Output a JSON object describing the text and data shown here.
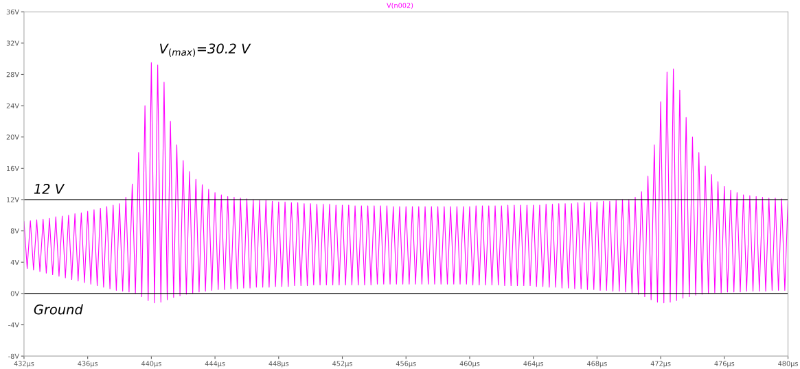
{
  "chart_data": {
    "type": "line",
    "title": "V(n002)",
    "x": [
      432.0,
      432.2,
      432.4,
      432.6,
      432.8,
      433.0,
      433.2,
      433.4,
      433.6,
      433.8,
      434.0,
      434.2,
      434.4,
      434.6,
      434.8,
      435.0,
      435.2,
      435.4,
      435.6,
      435.8,
      436.0,
      436.2,
      436.4,
      436.6,
      436.8,
      437.0,
      437.2,
      437.4,
      437.6,
      437.8,
      438.0,
      438.2,
      438.4,
      438.6,
      438.8,
      439.0,
      439.2,
      439.4,
      439.6,
      439.8,
      440.0,
      440.2,
      440.4,
      440.6,
      440.8,
      441.0,
      441.2,
      441.4,
      441.6,
      441.8,
      442.0,
      442.2,
      442.4,
      442.6,
      442.8,
      443.0,
      443.2,
      443.4,
      443.6,
      443.8,
      444.0,
      444.2,
      444.4,
      444.6,
      444.8,
      445.0,
      445.2,
      445.4,
      445.6,
      445.8,
      446.0,
      446.2,
      446.4,
      446.6,
      446.8,
      447.0,
      447.2,
      447.4,
      447.6,
      447.8,
      448.0,
      448.2,
      448.4,
      448.6,
      448.8,
      449.0,
      449.2,
      449.4,
      449.6,
      449.8,
      450.0,
      450.2,
      450.4,
      450.6,
      450.8,
      451.0,
      451.2,
      451.4,
      451.6,
      451.8,
      452.0,
      452.2,
      452.4,
      452.6,
      452.8,
      453.0,
      453.2,
      453.4,
      453.6,
      453.8,
      454.0,
      454.2,
      454.4,
      454.6,
      454.8,
      455.0,
      455.2,
      455.4,
      455.6,
      455.8,
      456.0,
      456.2,
      456.4,
      456.6,
      456.8,
      457.0,
      457.2,
      457.4,
      457.6,
      457.8,
      458.0,
      458.2,
      458.4,
      458.6,
      458.8,
      459.0,
      459.2,
      459.4,
      459.6,
      459.8,
      460.0,
      460.2,
      460.4,
      460.6,
      460.8,
      461.0,
      461.2,
      461.4,
      461.6,
      461.8,
      462.0,
      462.2,
      462.4,
      462.6,
      462.8,
      463.0,
      463.2,
      463.4,
      463.6,
      463.8,
      464.0,
      464.2,
      464.4,
      464.6,
      464.8,
      465.0,
      465.2,
      465.4,
      465.6,
      465.8,
      466.0,
      466.2,
      466.4,
      466.6,
      466.8,
      467.0,
      467.2,
      467.4,
      467.6,
      467.8,
      468.0,
      468.2,
      468.4,
      468.6,
      468.8,
      469.0,
      469.2,
      469.4,
      469.6,
      469.8,
      470.0,
      470.2,
      470.4,
      470.6,
      470.8,
      471.0,
      471.2,
      471.4,
      471.6,
      471.8,
      472.0,
      472.2,
      472.4,
      472.6,
      472.8,
      473.0,
      473.2,
      473.4,
      473.6,
      473.8,
      474.0,
      474.2,
      474.4,
      474.6,
      474.8,
      475.0,
      475.2,
      475.4,
      475.6,
      475.8,
      476.0,
      476.2,
      476.4,
      476.6,
      476.8,
      477.0,
      477.2,
      477.4,
      477.6,
      477.8,
      478.0,
      478.2,
      478.4,
      478.6,
      478.8,
      479.0,
      479.2,
      479.4,
      479.6,
      479.8,
      480.0
    ],
    "series": [
      {
        "color": "#ff00ff",
        "values": [
          9.2,
          3.2,
          9.3,
          3.0,
          9.4,
          2.8,
          9.5,
          2.6,
          9.6,
          2.4,
          9.8,
          2.2,
          9.9,
          2.0,
          10.0,
          1.8,
          10.2,
          1.6,
          10.3,
          1.4,
          10.5,
          1.2,
          10.7,
          1.0,
          10.9,
          0.8,
          11.1,
          0.6,
          11.3,
          0.4,
          11.5,
          0.3,
          12.3,
          0.2,
          14,
          0.0,
          18,
          -0.4,
          24,
          -0.9,
          29.5,
          -1.2,
          29.2,
          -1.1,
          27,
          -0.8,
          22,
          -0.5,
          19,
          -0.3,
          17,
          -0.1,
          15.6,
          0.0,
          14.6,
          0.2,
          13.9,
          0.3,
          13.3,
          0.4,
          12.9,
          0.5,
          12.6,
          0.5,
          12.4,
          0.6,
          12.3,
          0.6,
          12.2,
          0.7,
          12.1,
          0.7,
          12.0,
          0.8,
          11.9,
          0.8,
          11.9,
          0.8,
          11.8,
          0.9,
          11.7,
          0.9,
          11.7,
          0.9,
          11.6,
          1.0,
          11.6,
          1.0,
          11.5,
          1.0,
          11.5,
          1.1,
          11.4,
          1.1,
          11.4,
          1.1,
          11.4,
          1.1,
          11.3,
          1.1,
          11.3,
          1.1,
          11.3,
          1.1,
          11.2,
          1.1,
          11.2,
          1.1,
          11.2,
          1.1,
          11.2,
          1.2,
          11.2,
          1.2,
          11.2,
          1.2,
          11.1,
          1.2,
          11.1,
          1.2,
          11.1,
          1.2,
          11.1,
          1.2,
          11.1,
          1.2,
          11.1,
          1.2,
          11.1,
          1.2,
          11.1,
          1.2,
          11.1,
          1.2,
          11.1,
          1.2,
          11.1,
          1.2,
          11.1,
          1.2,
          11.1,
          1.1,
          11.2,
          1.1,
          11.2,
          1.1,
          11.2,
          1.1,
          11.2,
          1.1,
          11.2,
          1.0,
          11.3,
          1.0,
          11.3,
          1.0,
          11.3,
          1.0,
          11.3,
          1.0,
          11.3,
          0.9,
          11.3,
          0.9,
          11.4,
          0.8,
          11.4,
          0.8,
          11.5,
          0.7,
          11.5,
          0.7,
          11.5,
          0.6,
          11.6,
          0.6,
          11.6,
          0.5,
          11.7,
          0.5,
          11.7,
          0.4,
          11.8,
          0.4,
          11.8,
          0.3,
          11.9,
          0.3,
          12.0,
          0.2,
          12.0,
          0.1,
          12.3,
          -0.1,
          13,
          -0.4,
          15,
          -0.8,
          19,
          -1.1,
          24.5,
          -1.2,
          28.3,
          -1.1,
          28.7,
          -0.9,
          26,
          -0.6,
          22.5,
          -0.4,
          20,
          -0.2,
          18,
          -0.1,
          16.3,
          0.0,
          15.2,
          0.1,
          14.3,
          0.1,
          13.7,
          0.2,
          13.2,
          0.2,
          12.9,
          0.2,
          12.6,
          0.3,
          12.5,
          0.3,
          12.4,
          0.3,
          12.3,
          0.3,
          12.2,
          0.4,
          12.2,
          0.4,
          12.1,
          0.4,
          12.1
        ]
      }
    ],
    "xlim": [
      432,
      480
    ],
    "xticks": [
      {
        "value": 432,
        "label": "432µs"
      },
      {
        "value": 436,
        "label": "436µs"
      },
      {
        "value": 440,
        "label": "440µs"
      },
      {
        "value": 444,
        "label": "444µs"
      },
      {
        "value": 448,
        "label": "448µs"
      },
      {
        "value": 452,
        "label": "452µs"
      },
      {
        "value": 456,
        "label": "456µs"
      },
      {
        "value": 460,
        "label": "460µs"
      },
      {
        "value": 464,
        "label": "464µs"
      },
      {
        "value": 468,
        "label": "468µs"
      },
      {
        "value": 472,
        "label": "472µs"
      },
      {
        "value": 476,
        "label": "476µs"
      },
      {
        "value": 480,
        "label": "480µs"
      }
    ],
    "ylim": [
      -8,
      36
    ],
    "yticks": [
      {
        "value": -8,
        "label": "-8V"
      },
      {
        "value": -4,
        "label": "-4V"
      },
      {
        "value": 0,
        "label": "0V"
      },
      {
        "value": 4,
        "label": "4V"
      },
      {
        "value": 8,
        "label": "8V"
      },
      {
        "value": 12,
        "label": "12V"
      },
      {
        "value": 16,
        "label": "16V"
      },
      {
        "value": 20,
        "label": "20V"
      },
      {
        "value": 24,
        "label": "24V"
      },
      {
        "value": 28,
        "label": "28V"
      },
      {
        "value": 32,
        "label": "32V"
      },
      {
        "value": 36,
        "label": "36V"
      }
    ],
    "ref_lines": [
      {
        "axis": "y",
        "value": 12,
        "label": "12 V",
        "color": "#000000"
      },
      {
        "axis": "y",
        "value": 0,
        "label": "Ground",
        "color": "#000000"
      }
    ],
    "annotations": [
      {
        "text": "V$_{(max)}$=30.2 V",
        "x": 440.0,
        "y": 29.5
      }
    ],
    "grid": false,
    "legend": false,
    "marker": "none",
    "line_style": "solid"
  }
}
